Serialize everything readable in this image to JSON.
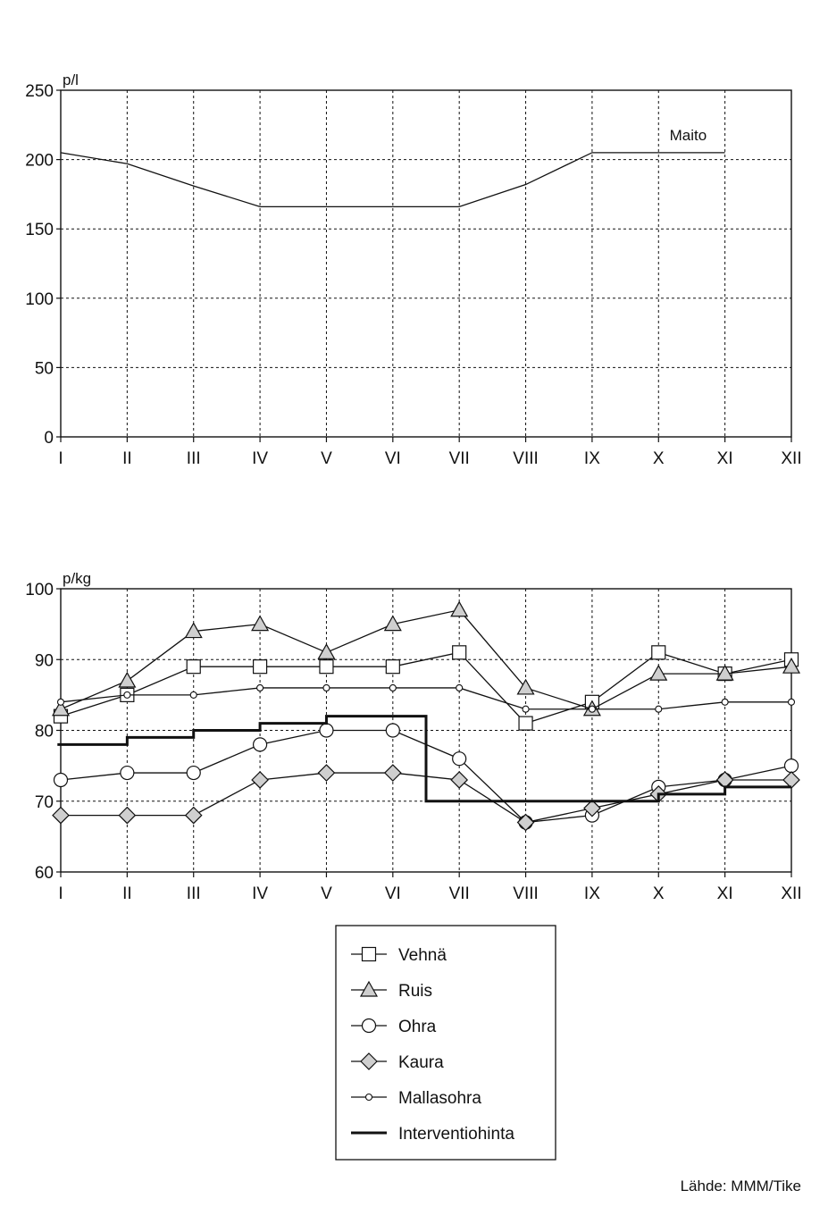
{
  "chart_data": [
    {
      "type": "line",
      "ylabel": "p/l",
      "ylim": [
        0,
        250
      ],
      "yticks": [
        "0",
        "50",
        "100",
        "150",
        "200",
        "250"
      ],
      "categories": [
        "I",
        "II",
        "III",
        "IV",
        "V",
        "VI",
        "VII",
        "VIII",
        "IX",
        "X",
        "XI",
        "XII"
      ],
      "grid": true,
      "series": [
        {
          "name": "Maito",
          "x": [
            1,
            2,
            3,
            4,
            5,
            6,
            7,
            8,
            9,
            10,
            11
          ],
          "values": [
            205,
            197,
            181,
            166,
            166,
            166,
            166,
            182,
            205,
            205,
            205
          ]
        }
      ]
    },
    {
      "type": "line",
      "ylabel": "p/kg",
      "ylim": [
        60,
        100
      ],
      "yticks": [
        "60",
        "70",
        "80",
        "90",
        "100"
      ],
      "categories": [
        "I",
        "II",
        "III",
        "IV",
        "V",
        "VI",
        "VII",
        "VIII",
        "IX",
        "X",
        "XI",
        "XII"
      ],
      "grid": true,
      "legend_position": "bottom-center",
      "series": [
        {
          "name": "Vehnä",
          "marker": "square",
          "x": [
            1,
            2,
            3,
            4,
            5,
            6,
            7,
            8,
            9,
            10,
            11,
            12
          ],
          "values": [
            82,
            85,
            89,
            89,
            89,
            89,
            91,
            81,
            84,
            91,
            88,
            90
          ]
        },
        {
          "name": "Ruis",
          "marker": "triangle",
          "x": [
            1,
            2,
            3,
            4,
            5,
            6,
            7,
            8,
            9,
            10,
            11,
            12
          ],
          "values": [
            83,
            87,
            94,
            95,
            91,
            95,
            97,
            86,
            83,
            88,
            88,
            89
          ]
        },
        {
          "name": "Ohra",
          "marker": "circle",
          "x": [
            1,
            2,
            3,
            4,
            5,
            6,
            7,
            8,
            9,
            10,
            11,
            12
          ],
          "values": [
            73,
            74,
            74,
            78,
            80,
            80,
            76,
            67,
            68,
            72,
            73,
            75
          ]
        },
        {
          "name": "Kaura",
          "marker": "diamond",
          "x": [
            1,
            2,
            3,
            4,
            5,
            6,
            7,
            8,
            9,
            10,
            11,
            12
          ],
          "values": [
            68,
            68,
            68,
            73,
            74,
            74,
            73,
            67,
            69,
            71,
            73,
            73
          ]
        },
        {
          "name": "Mallasohra",
          "marker": "small-circle",
          "x": [
            1,
            2,
            3,
            4,
            5,
            6,
            7,
            8,
            9,
            10,
            11,
            12
          ],
          "values": [
            84,
            85,
            85,
            86,
            86,
            86,
            86,
            83,
            83,
            83,
            84,
            84
          ]
        },
        {
          "name": "Interventiohinta",
          "marker": "none",
          "style": "step",
          "x": [
            0.95,
            2,
            3,
            4,
            5,
            6.5,
            10,
            11,
            12
          ],
          "values": [
            78,
            79,
            80,
            81,
            82,
            70,
            71,
            72,
            72
          ]
        }
      ]
    }
  ],
  "source_label": "Lähde: MMM/Tike"
}
